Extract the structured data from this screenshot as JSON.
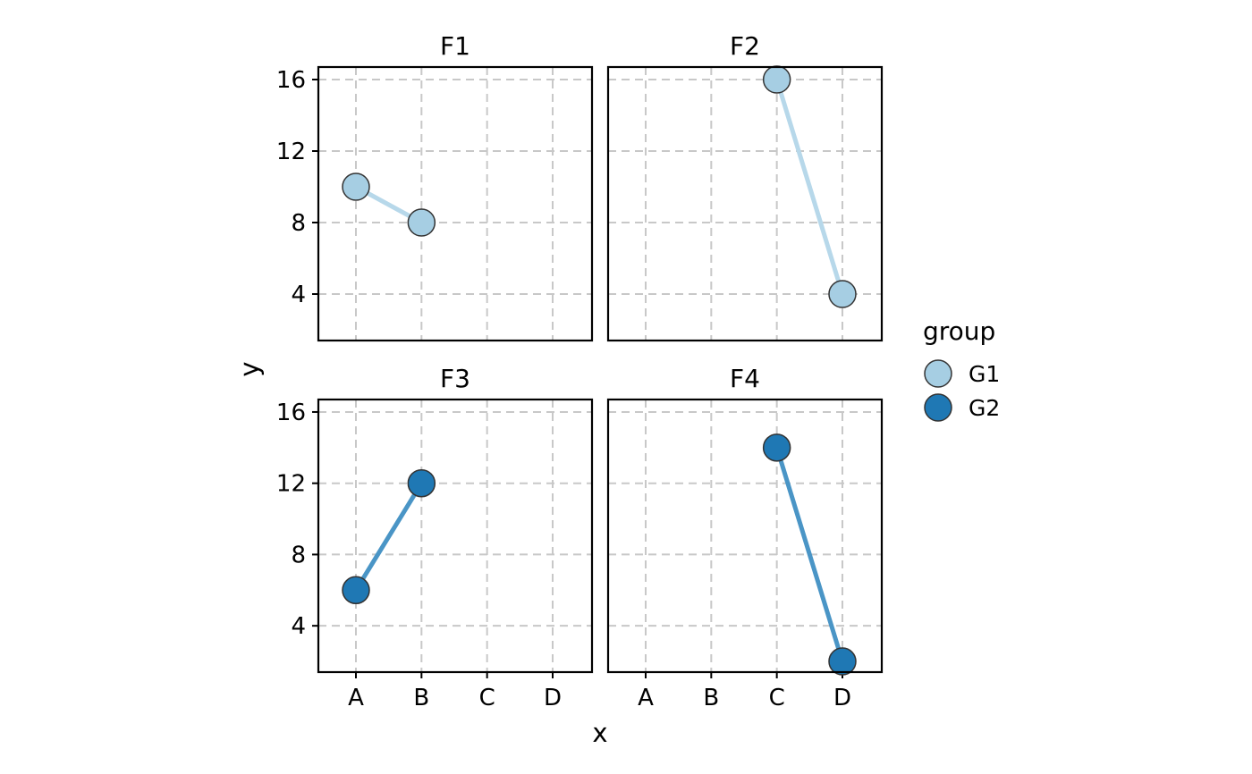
{
  "chart_data": {
    "type": "line",
    "xlabel": "x",
    "ylabel": "y",
    "x_categories": [
      "A",
      "B",
      "C",
      "D"
    ],
    "y_ticks": [
      4,
      8,
      12,
      16
    ],
    "ylim": [
      1.4,
      16.7
    ],
    "grid": true,
    "legend": {
      "title": "group",
      "position": "right",
      "entries": [
        {
          "name": "G1",
          "color": "#a6cee3",
          "line_color": "#b7d8ea"
        },
        {
          "name": "G2",
          "color": "#1f78b4",
          "line_color": "#4a95c6"
        }
      ]
    },
    "panels": [
      {
        "title": "F1",
        "group": "G1",
        "points": [
          {
            "x": "A",
            "y": 10
          },
          {
            "x": "B",
            "y": 8
          }
        ]
      },
      {
        "title": "F2",
        "group": "G1",
        "points": [
          {
            "x": "C",
            "y": 16
          },
          {
            "x": "D",
            "y": 4
          }
        ]
      },
      {
        "title": "F3",
        "group": "G2",
        "points": [
          {
            "x": "A",
            "y": 6
          },
          {
            "x": "B",
            "y": 12
          }
        ]
      },
      {
        "title": "F4",
        "group": "G2",
        "points": [
          {
            "x": "C",
            "y": 14
          },
          {
            "x": "D",
            "y": 2
          }
        ]
      }
    ]
  }
}
